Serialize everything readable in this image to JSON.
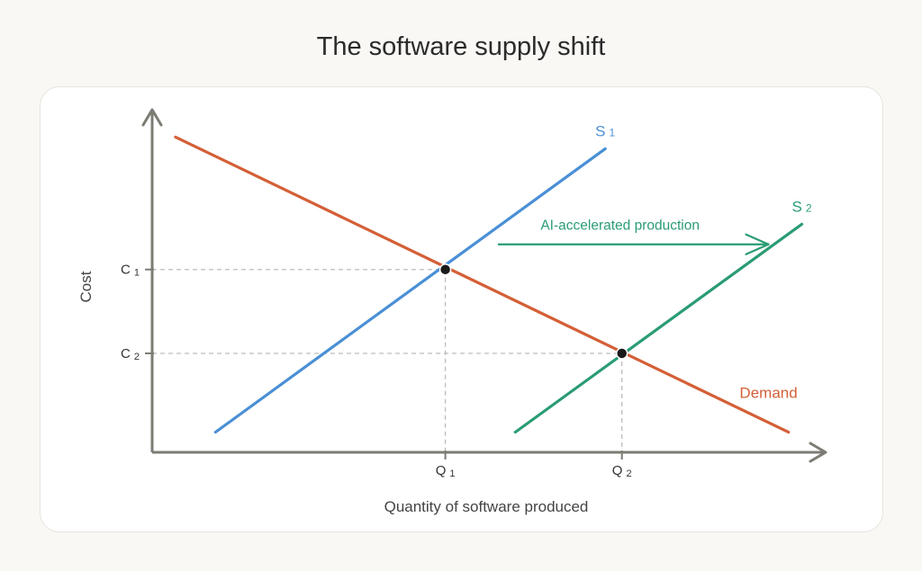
{
  "title": "The software supply shift",
  "colors": {
    "supply1": "#4a8fd6",
    "supply2": "#2a9c73",
    "demand": "#d45f36",
    "axis": "#7c7c74",
    "guide": "#bdbdbd",
    "point": "#1a1a1a"
  },
  "chart_data": {
    "type": "line",
    "title": "The software supply shift",
    "xlabel": "Quantity of software produced",
    "ylabel": "Cost",
    "x_ticks": [
      {
        "label": "Q",
        "sub": "1",
        "at": "q1"
      },
      {
        "label": "Q",
        "sub": "2",
        "at": "q2"
      }
    ],
    "y_ticks": [
      {
        "label": "C",
        "sub": "1",
        "at": "c1"
      },
      {
        "label": "C",
        "sub": "2",
        "at": "c2"
      }
    ],
    "xlim": [
      0,
      100
    ],
    "ylim": [
      0,
      100
    ],
    "series": [
      {
        "key": "s1",
        "name": "S",
        "sub": "1",
        "color_key": "supply1",
        "points": [
          [
            9.5,
            6.0
          ],
          [
            68.0,
            90.5
          ]
        ]
      },
      {
        "key": "s2",
        "name": "S",
        "sub": "2",
        "color_key": "supply2",
        "points": [
          [
            54.5,
            6.0
          ],
          [
            97.5,
            68.0
          ]
        ]
      },
      {
        "key": "demand",
        "name": "Demand",
        "color_key": "demand",
        "points": [
          [
            3.5,
            94.0
          ],
          [
            95.5,
            6.0
          ]
        ]
      }
    ],
    "equilibria": [
      {
        "key": "q1",
        "x": 44.0,
        "y": 54.5
      },
      {
        "key": "q2",
        "x": 70.5,
        "y": 29.5
      }
    ],
    "annotation": {
      "text": "AI-accelerated production",
      "from": [
        52.0,
        62.0
      ],
      "to": [
        92.5,
        62.0
      ]
    },
    "grid": false
  }
}
